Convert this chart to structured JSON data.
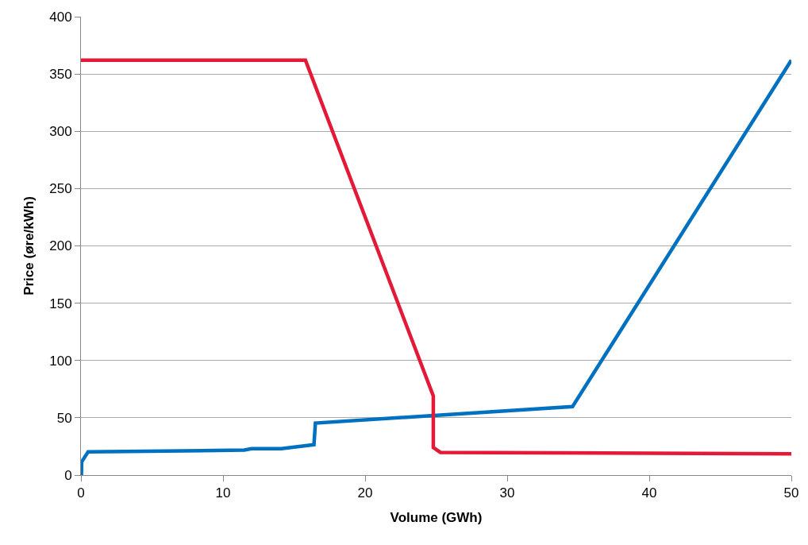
{
  "chart_data": {
    "type": "line",
    "xlabel": "Volume (GWh)",
    "ylabel": "Price (øre/kWh)",
    "xlim": [
      0,
      50
    ],
    "xticks": [
      0,
      10,
      20,
      30,
      40,
      50
    ],
    "ylim": [
      0,
      400
    ],
    "yticks": [
      0,
      50,
      100,
      150,
      200,
      250,
      300,
      350,
      400
    ],
    "grid": "y",
    "marker": "none",
    "line_style": "solid",
    "series": [
      {
        "color": "#0070c0",
        "x": [
          0.03,
          0.05,
          0.5,
          11.5,
          12,
          14.1,
          16.4,
          16.5,
          34.6,
          50
        ],
        "values": [
          0,
          11.5,
          20.2,
          21.8,
          23,
          23,
          26.6,
          45.4,
          59.8,
          362
        ]
      },
      {
        "color": "#e31937",
        "x": [
          0,
          15.8,
          24.8,
          24.8,
          25.3,
          50
        ],
        "values": [
          362,
          362,
          69,
          24,
          19.8,
          18.5
        ]
      }
    ]
  }
}
